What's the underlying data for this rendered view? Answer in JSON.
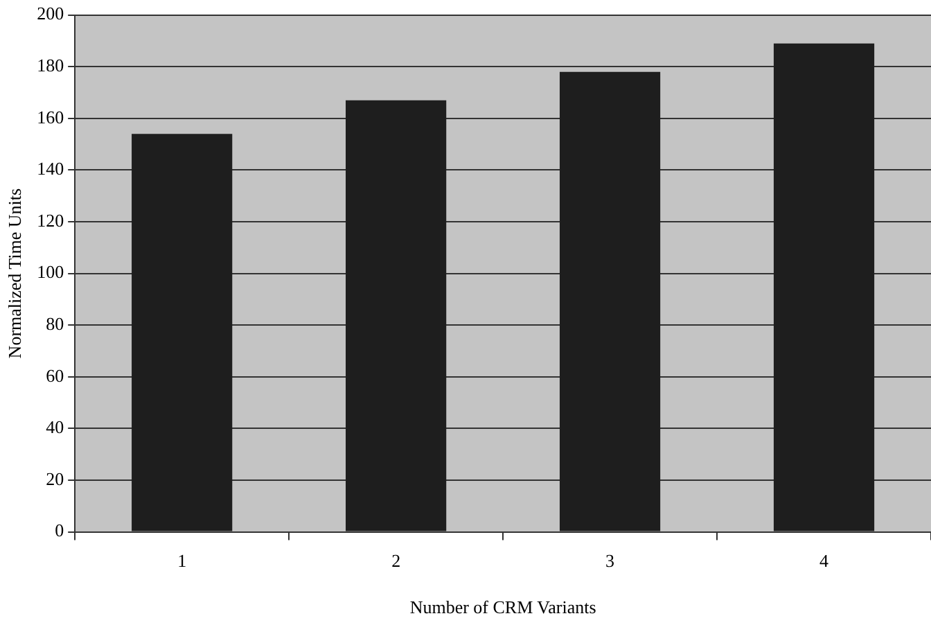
{
  "chart_data": {
    "type": "bar",
    "xlabel": "Number of CRM Variants",
    "ylabel": "Normalized Time Units",
    "categories": [
      "1",
      "2",
      "3",
      "4"
    ],
    "values": [
      154,
      167,
      178,
      189
    ],
    "color": "#1e1e1e",
    "ylim": [
      0,
      200
    ],
    "yticks": [
      0,
      20,
      40,
      60,
      80,
      100,
      120,
      140,
      160,
      180,
      200
    ],
    "grid": "y"
  }
}
